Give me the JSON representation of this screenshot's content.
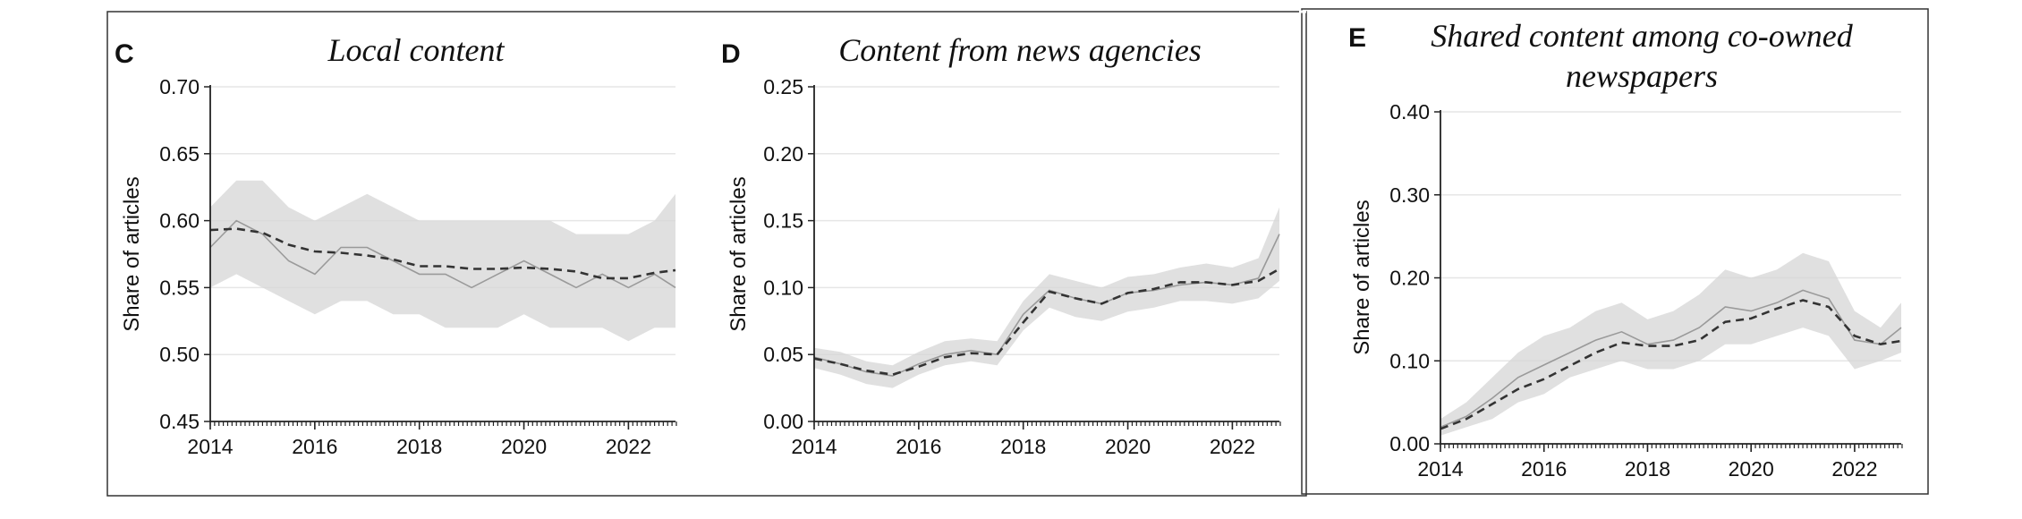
{
  "colors": {
    "band": "#d6d6d6",
    "monthly_line": "#9a9a9a",
    "trend_line": "#333333",
    "grid": "#e6e6e6",
    "axis": "#222222",
    "frame": "#333333"
  },
  "chart_data": [
    {
      "id": "C",
      "type": "line",
      "panel_label": "C",
      "title": "Local content",
      "ylabel": "Share of articles",
      "xlabel": "",
      "xlim": [
        2014,
        2022.9
      ],
      "ylim": [
        0.45,
        0.7
      ],
      "xticks": [
        2014,
        2016,
        2018,
        2020,
        2022
      ],
      "yticks": [
        "0.45",
        "0.50",
        "0.55",
        "0.60",
        "0.65",
        "0.70"
      ],
      "grid": true,
      "x": [
        2014.0,
        2014.5,
        2015.0,
        2015.5,
        2016.0,
        2016.5,
        2017.0,
        2017.5,
        2018.0,
        2018.5,
        2019.0,
        2019.5,
        2020.0,
        2020.5,
        2021.0,
        2021.5,
        2022.0,
        2022.5,
        2022.9
      ],
      "series": [
        {
          "role": "band",
          "upper": [
            0.61,
            0.63,
            0.63,
            0.61,
            0.6,
            0.61,
            0.62,
            0.61,
            0.6,
            0.6,
            0.6,
            0.6,
            0.6,
            0.6,
            0.59,
            0.59,
            0.59,
            0.6,
            0.62
          ],
          "lower": [
            0.55,
            0.56,
            0.55,
            0.54,
            0.53,
            0.54,
            0.54,
            0.53,
            0.53,
            0.52,
            0.52,
            0.52,
            0.53,
            0.52,
            0.52,
            0.52,
            0.51,
            0.52,
            0.52
          ]
        },
        {
          "role": "monthly",
          "values": [
            0.58,
            0.6,
            0.59,
            0.57,
            0.56,
            0.58,
            0.58,
            0.57,
            0.56,
            0.56,
            0.55,
            0.56,
            0.57,
            0.56,
            0.55,
            0.56,
            0.55,
            0.56,
            0.55
          ]
        },
        {
          "role": "trend",
          "values": [
            0.593,
            0.594,
            0.591,
            0.582,
            0.577,
            0.576,
            0.574,
            0.571,
            0.566,
            0.566,
            0.564,
            0.564,
            0.565,
            0.564,
            0.562,
            0.557,
            0.557,
            0.561,
            0.563
          ]
        }
      ]
    },
    {
      "id": "D",
      "type": "line",
      "panel_label": "D",
      "title": "Content from news agencies",
      "ylabel": "Share of articles",
      "xlabel": "",
      "xlim": [
        2014,
        2022.9
      ],
      "ylim": [
        0.0,
        0.25
      ],
      "xticks": [
        2014,
        2016,
        2018,
        2020,
        2022
      ],
      "yticks": [
        "0.00",
        "0.05",
        "0.10",
        "0.15",
        "0.20",
        "0.25"
      ],
      "grid": true,
      "x": [
        2014.0,
        2014.5,
        2015.0,
        2015.5,
        2016.0,
        2016.5,
        2017.0,
        2017.5,
        2018.0,
        2018.5,
        2019.0,
        2019.5,
        2020.0,
        2020.5,
        2021.0,
        2021.5,
        2022.0,
        2022.5,
        2022.9
      ],
      "series": [
        {
          "role": "band",
          "upper": [
            0.055,
            0.052,
            0.045,
            0.042,
            0.052,
            0.06,
            0.062,
            0.06,
            0.09,
            0.11,
            0.105,
            0.1,
            0.108,
            0.11,
            0.115,
            0.118,
            0.115,
            0.122,
            0.16
          ],
          "lower": [
            0.04,
            0.035,
            0.028,
            0.025,
            0.035,
            0.042,
            0.045,
            0.042,
            0.068,
            0.085,
            0.078,
            0.075,
            0.082,
            0.085,
            0.09,
            0.09,
            0.088,
            0.092,
            0.105
          ]
        },
        {
          "role": "monthly",
          "values": [
            0.048,
            0.043,
            0.037,
            0.034,
            0.043,
            0.05,
            0.053,
            0.05,
            0.08,
            0.098,
            0.092,
            0.088,
            0.096,
            0.098,
            0.102,
            0.104,
            0.102,
            0.107,
            0.14
          ]
        },
        {
          "role": "trend",
          "values": [
            0.047,
            0.043,
            0.038,
            0.035,
            0.041,
            0.048,
            0.051,
            0.05,
            0.074,
            0.097,
            0.092,
            0.088,
            0.096,
            0.099,
            0.104,
            0.104,
            0.102,
            0.105,
            0.114
          ]
        }
      ]
    },
    {
      "id": "E",
      "type": "line",
      "panel_label": "E",
      "title": "Shared content among co-owned newspapers",
      "title_lines": [
        "Shared content among co-owned",
        "newspapers"
      ],
      "ylabel": "Share of articles",
      "xlabel": "",
      "xlim": [
        2014,
        2022.9
      ],
      "ylim": [
        0.0,
        0.4
      ],
      "xticks": [
        2014,
        2016,
        2018,
        2020,
        2022
      ],
      "yticks": [
        "0.00",
        "0.10",
        "0.20",
        "0.30",
        "0.40"
      ],
      "grid": true,
      "x": [
        2014.0,
        2014.5,
        2015.0,
        2015.5,
        2016.0,
        2016.5,
        2017.0,
        2017.5,
        2018.0,
        2018.5,
        2019.0,
        2019.5,
        2020.0,
        2020.5,
        2021.0,
        2021.5,
        2022.0,
        2022.5,
        2022.9
      ],
      "series": [
        {
          "role": "band",
          "upper": [
            0.03,
            0.05,
            0.08,
            0.11,
            0.13,
            0.14,
            0.16,
            0.17,
            0.15,
            0.16,
            0.18,
            0.21,
            0.2,
            0.21,
            0.23,
            0.22,
            0.16,
            0.14,
            0.17
          ],
          "lower": [
            0.01,
            0.02,
            0.03,
            0.05,
            0.06,
            0.08,
            0.09,
            0.1,
            0.09,
            0.09,
            0.1,
            0.12,
            0.12,
            0.13,
            0.14,
            0.13,
            0.09,
            0.1,
            0.11
          ]
        },
        {
          "role": "monthly",
          "values": [
            0.02,
            0.033,
            0.055,
            0.08,
            0.095,
            0.11,
            0.125,
            0.135,
            0.12,
            0.125,
            0.14,
            0.165,
            0.16,
            0.17,
            0.185,
            0.175,
            0.125,
            0.12,
            0.14
          ]
        },
        {
          "role": "trend",
          "values": [
            0.018,
            0.03,
            0.048,
            0.066,
            0.078,
            0.094,
            0.11,
            0.122,
            0.118,
            0.118,
            0.125,
            0.147,
            0.151,
            0.163,
            0.173,
            0.165,
            0.13,
            0.12,
            0.124
          ]
        }
      ]
    }
  ]
}
